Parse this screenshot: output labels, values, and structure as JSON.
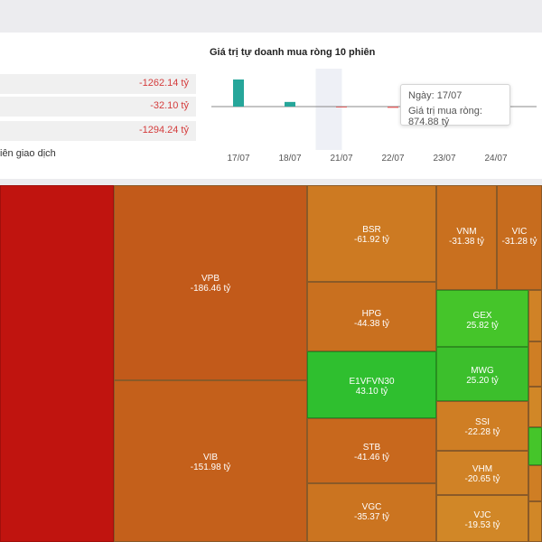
{
  "summary": {
    "rows": [
      {
        "value": "-1262.14 tỷ"
      },
      {
        "value": "-32.10 tỷ"
      },
      {
        "value": "-1294.24 tỷ"
      }
    ],
    "note": "iên giao dịch"
  },
  "chart_data": {
    "type": "bar",
    "title": "Giá trị tự doanh mua ròng 10 phiên",
    "categories": [
      "17/07",
      "18/07",
      "21/07",
      "22/07",
      "23/07",
      "24/07"
    ],
    "values": [
      874.88,
      150,
      -15,
      -40,
      0,
      0
    ],
    "highlight_index": 2,
    "bar_colors": {
      "positive": "#26a69a",
      "negative": "#e06060"
    },
    "tooltip": {
      "date_line": "Ngày: 17/07",
      "value_line": "Giá trị mua ròng: 874.88 tỷ"
    }
  },
  "treemap": {
    "colors": {
      "deep_red": "#c0140f",
      "orange": "#c8641c",
      "orange_dark": "#c15a1a",
      "orange_light": "#cd7a22",
      "green": "#2fbf2f",
      "green_light": "#45c52a"
    },
    "tiles": [
      {
        "symbol": "",
        "value": ""
      },
      {
        "symbol": "VPB",
        "value": "-186.46 tỷ"
      },
      {
        "symbol": "VIB",
        "value": "-151.98 tỷ"
      },
      {
        "symbol": "BSR",
        "value": "-61.92 tỷ"
      },
      {
        "symbol": "HPG",
        "value": "-44.38 tỷ"
      },
      {
        "symbol": "E1VFVN30",
        "value": "43.10 tỷ"
      },
      {
        "symbol": "STB",
        "value": "-41.46 tỷ"
      },
      {
        "symbol": "VGC",
        "value": "-35.37 tỷ"
      },
      {
        "symbol": "VNM",
        "value": "-31.38 tỷ"
      },
      {
        "symbol": "VIC",
        "value": "-31.28 tỷ"
      },
      {
        "symbol": "GEX",
        "value": "25.82 tỷ"
      },
      {
        "symbol": "MWG",
        "value": "25.20 tỷ"
      },
      {
        "symbol": "SSI",
        "value": "-22.28 tỷ"
      },
      {
        "symbol": "VHM",
        "value": "-20.65 tỷ"
      },
      {
        "symbol": "VJC",
        "value": "-19.53 tỷ"
      },
      {
        "symbol": "",
        "value": ""
      },
      {
        "symbol": "",
        "value": ""
      },
      {
        "symbol": "",
        "value": ""
      },
      {
        "symbol": "",
        "value": ""
      },
      {
        "symbol": "",
        "value": ""
      },
      {
        "symbol": "",
        "value": ""
      }
    ]
  }
}
